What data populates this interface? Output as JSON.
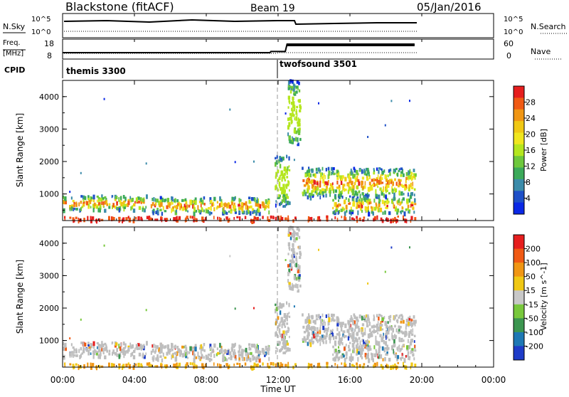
{
  "header": {
    "station": "Blackstone (fitACF)",
    "beam": "Beam 19",
    "date": "05/Jan/2016"
  },
  "top_panels": {
    "nsky_label": "N.Sky",
    "nsearch_label": "N.Search",
    "nsky_ticks": [
      "10^5",
      "10^0"
    ],
    "nsearch_ticks": [
      "10^5",
      "10^0"
    ],
    "freq_label": "Freq.",
    "freq_unit": "[MHz]",
    "freq_ticks": [
      "18",
      "8"
    ],
    "nave_label": "Nave",
    "nave_ticks": [
      "60",
      "0"
    ],
    "cpid_label": "CPID",
    "modes": [
      {
        "name": "themis 3300",
        "start": "00:00",
        "end": "11:55"
      },
      {
        "name": "twofsound 3501",
        "start": "11:55",
        "end": "19:40"
      }
    ],
    "freq_series": [
      {
        "time": 0.0,
        "mhz": 10.5
      },
      {
        "time": 11.55,
        "mhz": 10.5
      },
      {
        "time": 11.6,
        "mhz": 11.3
      },
      {
        "time": 12.4,
        "mhz": 11.3
      },
      {
        "time": 12.5,
        "mhz": 16.5
      },
      {
        "time": 19.6,
        "mhz": 16.5
      }
    ]
  },
  "chart_data": [
    {
      "type": "heatmap",
      "name": "power",
      "ylabel": "Slant Range [km]",
      "xlabel": "Time UT",
      "x_ticks": [
        "00:00",
        "04:00",
        "08:00",
        "12:00",
        "16:00",
        "20:00",
        "00:00"
      ],
      "x_range_hours": [
        0,
        24
      ],
      "y_ticks": [
        "1000",
        "2000",
        "3000",
        "4000"
      ],
      "y_range_km": [
        180,
        4500
      ],
      "data_end_hours": 19.6,
      "colorbar": {
        "label": "Power [dB]",
        "ticks": [
          "28",
          "24",
          "20",
          "16",
          "12",
          "8",
          "4"
        ],
        "range": [
          0,
          30
        ],
        "colors": [
          "#0a28e6",
          "#1e50c8",
          "#3c8caa",
          "#3caa5a",
          "#6ec83c",
          "#b4e61e",
          "#f0e61e",
          "#f0c814",
          "#f09614",
          "#f05a14",
          "#e61e1e"
        ]
      },
      "echo_regions": [
        {
          "t0": 0.0,
          "t1": 4.7,
          "r0": 500,
          "r1": 950,
          "level": "high"
        },
        {
          "t0": 4.9,
          "t1": 11.5,
          "r0": 400,
          "r1": 900,
          "level": "high"
        },
        {
          "t0": 11.8,
          "t1": 12.6,
          "r0": 600,
          "r1": 2200,
          "level": "medium"
        },
        {
          "t0": 12.5,
          "t1": 13.2,
          "r0": 2500,
          "r1": 4500,
          "level": "medium"
        },
        {
          "t0": 13.3,
          "t1": 19.6,
          "r0": 900,
          "r1": 1800,
          "level": "high"
        },
        {
          "t0": 15.0,
          "t1": 19.6,
          "r0": 400,
          "r1": 900,
          "level": "high"
        },
        {
          "t0": 0.0,
          "t1": 19.6,
          "r0": 180,
          "r1": 300,
          "level": "ground"
        }
      ]
    },
    {
      "type": "heatmap",
      "name": "velocity",
      "ylabel": "Slant Range [km]",
      "xlabel": "Time UT",
      "x_ticks": [
        "00:00",
        "04:00",
        "08:00",
        "12:00",
        "16:00",
        "20:00",
        "00:00"
      ],
      "x_range_hours": [
        0,
        24
      ],
      "y_ticks": [
        "1000",
        "2000",
        "3000",
        "4000"
      ],
      "y_range_km": [
        180,
        4500
      ],
      "data_end_hours": 19.6,
      "colorbar": {
        "label": "Velocity [m s^-1]",
        "ticks": [
          "200",
          "100",
          "50",
          "15",
          "-15",
          "-50",
          "-100",
          "-200"
        ],
        "colors": [
          "#1e3cc8",
          "#1e78b4",
          "#3c9650",
          "#78c83c",
          "#c8c8c8",
          "#f0c814",
          "#f09614",
          "#f05a14",
          "#e61e1e"
        ]
      }
    }
  ],
  "colors": {
    "grid_dash": "#999999",
    "ground_scatter": "#bebebe"
  }
}
